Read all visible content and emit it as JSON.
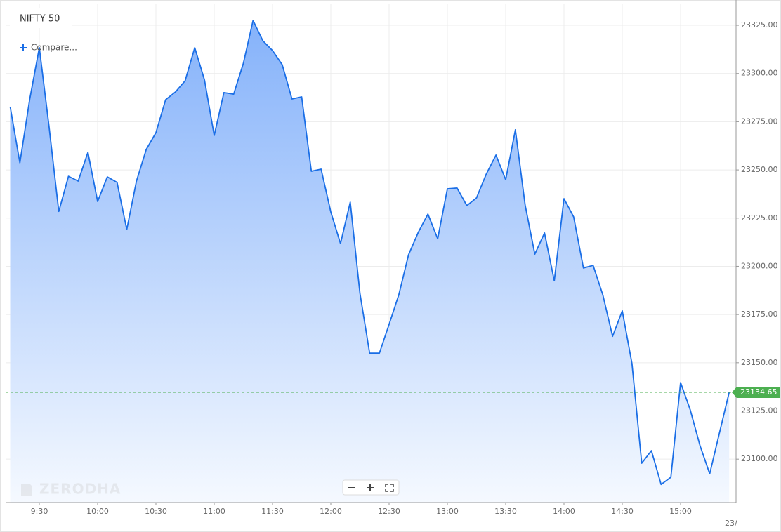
{
  "chart_data": {
    "type": "area",
    "title": "NIFTY 50",
    "compare": "Compare...",
    "watermark": "ZERODHA",
    "next_day_label": "23/",
    "categories": [
      null,
      null,
      null,
      "9:30",
      null,
      null,
      null,
      null,
      null,
      "10:00",
      null,
      null,
      null,
      null,
      null,
      "10:30",
      null,
      null,
      null,
      null,
      null,
      "11:00",
      null,
      null,
      null,
      null,
      null,
      "11:30",
      null,
      null,
      null,
      null,
      null,
      "12:00",
      null,
      null,
      null,
      null,
      null,
      "12:30",
      null,
      null,
      null,
      null,
      null,
      "13:00",
      null,
      null,
      null,
      null,
      null,
      "13:30",
      null,
      null,
      null,
      null,
      null,
      "14:00",
      null,
      null,
      null,
      null,
      null,
      "14:30",
      null,
      null,
      null,
      null,
      null,
      "15:00",
      null,
      null,
      null,
      null,
      null
    ],
    "series": [
      {
        "color": "#1a6ee6",
        "values": [
          23282.8,
          23253.7,
          23286.4,
          23313.4,
          23272.6,
          23228.5,
          23246.7,
          23244.2,
          23259.1,
          23233.6,
          23246.4,
          23243.5,
          23219.1,
          23244.2,
          23260.6,
          23269.3,
          23286.4,
          23290.4,
          23296.2,
          23313.4,
          23296.6,
          23267.9,
          23290.1,
          23289.3,
          23305.3,
          23327.5,
          23317,
          23311.9,
          23304.6,
          23286.8,
          23287.9,
          23249.3,
          23250.4,
          23228.2,
          23211.8,
          23233.3,
          23186,
          23155,
          23155,
          23169.9,
          23185.2,
          23206,
          23217.6,
          23227.1,
          23214.3,
          23240.2,
          23240.6,
          23231.5,
          23235.5,
          23247.8,
          23257.7,
          23244.9,
          23270.8,
          23231.8,
          23206.3,
          23217.3,
          23192.5,
          23235.1,
          23225.6,
          23199.1,
          23200.5,
          23185.2,
          23163.7,
          23176.9,
          23149.6,
          23097.9,
          23104.4,
          23086.9,
          23090.6,
          23139.7,
          23125.5,
          23107,
          23092.4,
          23113.5,
          23134.65
        ]
      }
    ],
    "last_price": 23134.65,
    "last_price_color": "#4caf50",
    "ylim": [
      23077.5,
      23336.3
    ],
    "yticks": [
      {
        "value": 23100,
        "label": "23100.00"
      },
      {
        "value": 23125,
        "label": "23125.00"
      },
      {
        "value": 23150,
        "label": "23150.00"
      },
      {
        "value": 23175,
        "label": "23175.00"
      },
      {
        "value": 23200,
        "label": "23200.00"
      },
      {
        "value": 23225,
        "label": "23225.00"
      },
      {
        "value": 23250,
        "label": "23250.00"
      },
      {
        "value": 23275,
        "label": "23275.00"
      },
      {
        "value": 23300,
        "label": "23300.00"
      },
      {
        "value": 23325,
        "label": "23325.00"
      }
    ],
    "grid": true
  }
}
